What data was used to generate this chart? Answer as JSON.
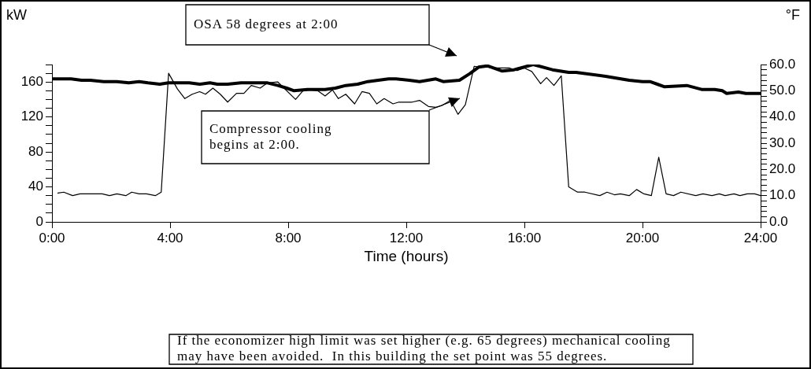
{
  "chart_data": {
    "type": "line",
    "xlabel": "Time (hours)",
    "ylabel": "kW",
    "y2label": "°F",
    "xlim": [
      0,
      24
    ],
    "xticks": [
      {
        "value": 0,
        "label": "0:00"
      },
      {
        "value": 4,
        "label": "4:00"
      },
      {
        "value": 8,
        "label": "8:00"
      },
      {
        "value": 12,
        "label": "12:00"
      },
      {
        "value": 16,
        "label": "16:00"
      },
      {
        "value": 20,
        "label": "20:00"
      },
      {
        "value": 24,
        "label": "24:00"
      }
    ],
    "ylim": [
      0,
      180
    ],
    "yticks": [
      0,
      {
        "value": 10,
        "label": null
      },
      {
        "value": 20,
        "label": null
      },
      {
        "value": 30,
        "label": null
      },
      40,
      {
        "value": 50,
        "label": null
      },
      {
        "value": 60,
        "label": null
      },
      {
        "value": 70,
        "label": null
      },
      80,
      {
        "value": 90,
        "label": null
      },
      {
        "value": 100,
        "label": null
      },
      {
        "value": 110,
        "label": null
      },
      120,
      {
        "value": 130,
        "label": null
      },
      {
        "value": 140,
        "label": null
      },
      {
        "value": 150,
        "label": null
      },
      160,
      {
        "value": 170,
        "label": null
      },
      {
        "value": 180,
        "label": null
      }
    ],
    "y2lim": [
      0,
      60
    ],
    "y2ticks": [
      {
        "value": 0,
        "label": "0.0"
      },
      {
        "value": 2,
        "label": null
      },
      {
        "value": 4,
        "label": null
      },
      {
        "value": 6,
        "label": null
      },
      {
        "value": 8,
        "label": null
      },
      {
        "value": 10,
        "label": "10.0"
      },
      {
        "value": 12,
        "label": null
      },
      {
        "value": 14,
        "label": null
      },
      {
        "value": 16,
        "label": null
      },
      {
        "value": 18,
        "label": null
      },
      {
        "value": 20,
        "label": "20.0"
      },
      {
        "value": 22,
        "label": null
      },
      {
        "value": 24,
        "label": null
      },
      {
        "value": 26,
        "label": null
      },
      {
        "value": 28,
        "label": null
      },
      {
        "value": 30,
        "label": "30.0"
      },
      {
        "value": 32,
        "label": null
      },
      {
        "value": 34,
        "label": null
      },
      {
        "value": 36,
        "label": null
      },
      {
        "value": 38,
        "label": null
      },
      {
        "value": 40,
        "label": "40.0"
      },
      {
        "value": 42,
        "label": null
      },
      {
        "value": 44,
        "label": null
      },
      {
        "value": 46,
        "label": null
      },
      {
        "value": 48,
        "label": null
      },
      {
        "value": 50,
        "label": "50.0"
      },
      {
        "value": 52,
        "label": null
      },
      {
        "value": 54,
        "label": null
      },
      {
        "value": 56,
        "label": null
      },
      {
        "value": 58,
        "label": null
      },
      {
        "value": 60,
        "label": "60.0"
      }
    ],
    "grid": false,
    "legend": false,
    "marker": "none",
    "line_style": "solid",
    "series": [
      {
        "color": "#000000",
        "x": [
          0.2,
          0.4,
          0.7,
          0.95,
          1.7,
          1.95,
          2.2,
          2.5,
          2.7,
          2.95,
          3.2,
          3.5,
          3.7,
          3.95,
          4.25,
          4.5,
          4.75,
          5.0,
          5.2,
          5.45,
          5.7,
          5.95,
          6.25,
          6.5,
          6.75,
          7.05,
          7.3,
          7.65,
          8.25,
          8.5,
          8.75,
          9.0,
          9.25,
          9.5,
          9.7,
          9.95,
          10.25,
          10.5,
          10.75,
          11.0,
          11.25,
          11.55,
          11.75,
          12.2,
          12.45,
          12.75,
          13.0,
          13.2,
          13.5,
          13.75,
          14.0,
          14.3,
          14.5,
          14.75,
          15.05,
          15.3,
          15.5,
          15.75,
          16.0,
          16.25,
          16.55,
          16.75,
          17.0,
          17.25,
          17.5,
          17.8,
          18.05,
          18.55,
          18.8,
          19.05,
          19.25,
          19.55,
          19.8,
          20.05,
          20.3,
          20.55,
          20.8,
          21.05,
          21.3,
          21.8,
          22.05,
          22.35,
          22.6,
          22.8,
          23.1,
          23.3,
          23.55,
          23.8,
          24.0
        ],
        "values": [
          33,
          34,
          30,
          32,
          32,
          30,
          32,
          30,
          34,
          32,
          32,
          30,
          34,
          170,
          152,
          141,
          146,
          149,
          146,
          153,
          146,
          137,
          147,
          147,
          156,
          153,
          159,
          160,
          140,
          150,
          151,
          150,
          144,
          151,
          141,
          146,
          135,
          149,
          147,
          135,
          141,
          135,
          137,
          137,
          139,
          132,
          131,
          133,
          139,
          123,
          134,
          178,
          177,
          177,
          176,
          176,
          176,
          173,
          176,
          172,
          158,
          165,
          156,
          167,
          40,
          34,
          34,
          30,
          34,
          31,
          32,
          30,
          37,
          32,
          30,
          74,
          32,
          30,
          34,
          30,
          32,
          30,
          32,
          30,
          32,
          30,
          32,
          32,
          30
        ]
      },
      {
        "color": "#000000",
        "axis": "y2",
        "x": [
          0.0,
          0.65,
          1.0,
          1.3,
          1.75,
          2.2,
          2.6,
          2.95,
          3.25,
          3.65,
          3.95,
          4.65,
          5.0,
          5.35,
          5.6,
          5.95,
          6.4,
          6.75,
          7.3,
          7.65,
          7.95,
          8.2,
          8.65,
          9.25,
          9.6,
          9.95,
          10.35,
          10.7,
          11.05,
          11.4,
          11.65,
          12.1,
          12.45,
          13.0,
          13.25,
          13.8,
          14.15,
          14.45,
          14.75,
          15.25,
          15.65,
          16.3,
          16.95,
          17.5,
          17.75,
          18.75,
          19.55,
          20.0,
          20.25,
          20.5,
          20.75,
          21.5,
          22.0,
          22.45,
          22.7,
          22.85,
          23.25,
          23.5,
          24.0
        ],
        "values": [
          54.5,
          54.5,
          54,
          54,
          53.5,
          53.5,
          53,
          53.5,
          53,
          52.5,
          53,
          53,
          52.5,
          53,
          52.5,
          52.5,
          53,
          53,
          53,
          52,
          51,
          50,
          50.5,
          50.5,
          51,
          52,
          52.5,
          53.5,
          54,
          54.5,
          54.5,
          54,
          53.5,
          54.5,
          53.5,
          54,
          56.5,
          59,
          59.5,
          57.5,
          58,
          60,
          58,
          57,
          57,
          55.5,
          54,
          53.5,
          53.5,
          52.5,
          51.5,
          52,
          50.5,
          50.5,
          50,
          49,
          49.5,
          49,
          49
        ]
      }
    ],
    "annotations": [
      "OSA 58 degrees at 2:00",
      "Compressor cooling begins at 2:00.",
      "If the economizer high limit was set higher (e.g. 65 degrees) mechanical cooling may have been avoided.  In this building the set point was 55 degrees."
    ]
  }
}
